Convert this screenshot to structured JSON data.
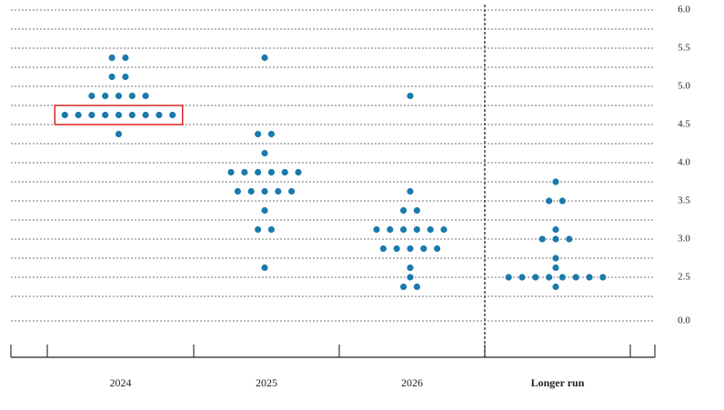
{
  "chart_data": {
    "type": "dot",
    "categories": [
      "2024",
      "2025",
      "2026",
      "Longer run"
    ],
    "dots": [
      [
        5.375,
        5.375,
        5.125,
        5.125,
        4.875,
        4.875,
        4.875,
        4.875,
        4.875,
        4.625,
        4.625,
        4.625,
        4.625,
        4.625,
        4.625,
        4.625,
        4.625,
        4.625,
        4.375
      ],
      [
        5.375,
        4.375,
        4.375,
        4.125,
        3.875,
        3.875,
        3.875,
        3.875,
        3.875,
        3.875,
        3.625,
        3.625,
        3.625,
        3.625,
        3.625,
        3.375,
        3.125,
        3.125,
        2.625
      ],
      [
        4.875,
        3.625,
        3.375,
        3.375,
        3.125,
        3.125,
        3.125,
        3.125,
        3.125,
        3.125,
        2.875,
        2.875,
        2.875,
        2.875,
        2.875,
        2.625,
        2.5,
        2.375,
        2.375
      ],
      [
        3.75,
        3.5,
        3.5,
        3.125,
        3.0,
        3.0,
        3.0,
        2.75,
        2.625,
        2.5,
        2.5,
        2.5,
        2.5,
        2.5,
        2.5,
        2.5,
        2.5,
        2.375
      ]
    ],
    "color": "#1a7aab",
    "ylim": [
      0,
      6
    ],
    "axis_break": [
      0,
      2.25
    ],
    "grid_step": 0.25,
    "yticks": [
      {
        "value": 0,
        "label": "0.0"
      },
      2.5,
      {
        "value": 3,
        "label": "3.0"
      },
      3.5,
      {
        "value": 4,
        "label": "4.0"
      },
      4.5,
      {
        "value": 5,
        "label": "5.0"
      },
      5.5,
      {
        "value": 6,
        "label": "6.0"
      }
    ],
    "highlight": {
      "category": 0,
      "value": 4.625,
      "color": "#e02020"
    }
  }
}
